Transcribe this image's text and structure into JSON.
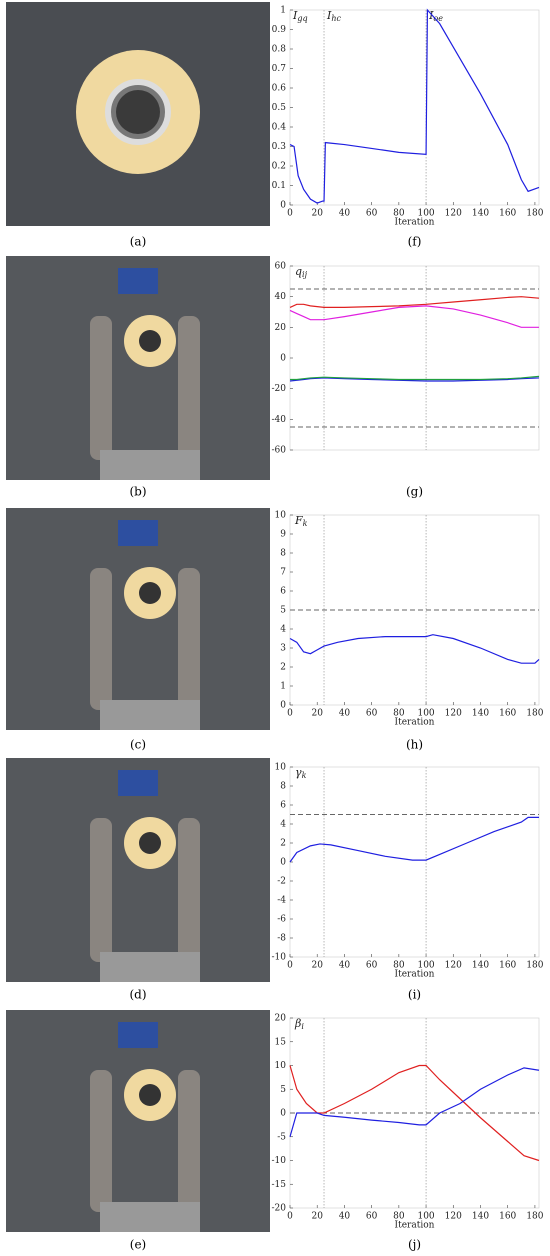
{
  "photos": [
    "(a)",
    "(b)",
    "(c)",
    "(d)",
    "(e)"
  ],
  "chart_data": [
    {
      "type": "line",
      "panel_label": "(f)",
      "xlabel": "Iteration",
      "annotations": [
        {
          "base": "I",
          "sub": "gq"
        },
        {
          "base": "I",
          "sub": "hc"
        },
        {
          "base": "I",
          "sub": "oe"
        }
      ],
      "x": [
        0,
        3,
        6,
        10,
        15,
        20,
        24,
        25,
        26,
        40,
        60,
        80,
        100,
        101,
        110,
        120,
        130,
        140,
        150,
        160,
        170,
        175,
        183
      ],
      "series": [
        {
          "color": "#1f1fe0",
          "values": [
            0.31,
            0.3,
            0.15,
            0.08,
            0.03,
            0.01,
            0.02,
            0.02,
            0.32,
            0.31,
            0.29,
            0.27,
            0.26,
            1.0,
            0.93,
            0.81,
            0.69,
            0.57,
            0.44,
            0.31,
            0.13,
            0.07,
            0.09
          ]
        }
      ],
      "xlim": [
        0,
        183
      ],
      "ylim": [
        0,
        1
      ],
      "xticks": [
        0,
        20,
        40,
        60,
        80,
        100,
        120,
        140,
        160,
        180
      ],
      "yticks": [
        0,
        0.1,
        0.2,
        0.3,
        0.4,
        0.5,
        0.6,
        0.7,
        0.8,
        0.9,
        1
      ],
      "vlines": [
        25,
        100
      ],
      "hlines": []
    },
    {
      "type": "line",
      "panel_label": "(g)",
      "ylabel": {
        "base": "q",
        "sub": "ij"
      },
      "x": [
        0,
        5,
        10,
        15,
        25,
        40,
        60,
        80,
        100,
        120,
        140,
        160,
        170,
        183
      ],
      "series": [
        {
          "color": "#e02020",
          "values": [
            33,
            35,
            35,
            34,
            33,
            33,
            33.5,
            34,
            35,
            36.5,
            38,
            39.5,
            40,
            39
          ]
        },
        {
          "color": "#e020e0",
          "values": [
            31,
            29,
            27,
            25,
            25,
            27,
            30,
            33,
            34,
            32,
            28,
            23,
            20,
            20
          ]
        },
        {
          "color": "#1f1fe0",
          "values": [
            -15,
            -14.5,
            -14,
            -13.5,
            -13,
            -13.5,
            -14,
            -14.5,
            -15,
            -15,
            -14.5,
            -14,
            -13.5,
            -13
          ]
        },
        {
          "color": "#20a040",
          "values": [
            -14,
            -14,
            -13.5,
            -13,
            -12.5,
            -13,
            -13.5,
            -14,
            -14,
            -14,
            -14,
            -13.5,
            -13,
            -12
          ]
        }
      ],
      "xlim": [
        0,
        183
      ],
      "ylim": [
        -60,
        60
      ],
      "yticks": [
        -60,
        -40,
        -20,
        0,
        20,
        40,
        60
      ],
      "vlines": [
        25,
        100
      ],
      "hlines": [
        45,
        -45
      ]
    },
    {
      "type": "line",
      "panel_label": "(h)",
      "xlabel": "Iteration",
      "ylabel": {
        "base": "F",
        "sub": "k"
      },
      "x": [
        0,
        5,
        10,
        15,
        20,
        25,
        35,
        50,
        70,
        100,
        105,
        120,
        140,
        160,
        170,
        180,
        183
      ],
      "series": [
        {
          "color": "#1f1fe0",
          "values": [
            3.5,
            3.3,
            2.8,
            2.7,
            2.9,
            3.1,
            3.3,
            3.5,
            3.6,
            3.6,
            3.7,
            3.5,
            3.0,
            2.4,
            2.2,
            2.2,
            2.4
          ]
        }
      ],
      "xlim": [
        0,
        183
      ],
      "ylim": [
        0,
        10
      ],
      "xticks": [
        0,
        20,
        40,
        60,
        80,
        100,
        120,
        140,
        160,
        180
      ],
      "yticks": [
        0,
        1,
        2,
        3,
        4,
        5,
        6,
        7,
        8,
        9,
        10
      ],
      "vlines": [
        25,
        100
      ],
      "hlines": [
        5
      ]
    },
    {
      "type": "line",
      "panel_label": "(i)",
      "xlabel": "Iteration",
      "ylabel": {
        "base": "γ",
        "sub": "k"
      },
      "x": [
        0,
        5,
        15,
        22,
        30,
        50,
        70,
        90,
        100,
        110,
        130,
        150,
        170,
        175,
        183
      ],
      "series": [
        {
          "color": "#1f1fe0",
          "values": [
            0,
            1,
            1.7,
            1.9,
            1.8,
            1.2,
            0.6,
            0.2,
            0.2,
            0.8,
            2,
            3.2,
            4.2,
            4.7,
            4.7
          ]
        }
      ],
      "xlim": [
        0,
        183
      ],
      "ylim": [
        -10,
        10
      ],
      "xticks": [
        0,
        20,
        40,
        60,
        80,
        100,
        120,
        140,
        160,
        180
      ],
      "yticks": [
        -10,
        -8,
        -6,
        -4,
        -2,
        0,
        2,
        4,
        6,
        8,
        10
      ],
      "vlines": [
        25,
        100
      ],
      "hlines": [
        5
      ]
    },
    {
      "type": "line",
      "panel_label": "(j)",
      "xlabel": "Iteration",
      "ylabel": {
        "base": "β",
        "sub": "i"
      },
      "x": [
        0,
        5,
        12,
        20,
        25,
        40,
        60,
        80,
        95,
        100,
        110,
        125,
        140,
        160,
        172,
        183
      ],
      "series": [
        {
          "color": "#e02020",
          "values": [
            10,
            5,
            2,
            0,
            0,
            2,
            5,
            8.5,
            10,
            10,
            7,
            3,
            -1,
            -6,
            -9,
            -10
          ]
        },
        {
          "color": "#1f1fe0",
          "values": [
            -5,
            0,
            0,
            0,
            -0.5,
            -0.9,
            -1.5,
            -2,
            -2.5,
            -2.5,
            0,
            2,
            5,
            8,
            9.5,
            9
          ]
        }
      ],
      "xlim": [
        0,
        183
      ],
      "ylim": [
        -20,
        20
      ],
      "xticks": [
        0,
        20,
        40,
        60,
        80,
        100,
        120,
        140,
        160,
        180
      ],
      "yticks": [
        -20,
        -15,
        -10,
        -5,
        0,
        5,
        10,
        15,
        20
      ],
      "vlines": [
        25,
        100
      ],
      "hlines": [
        0
      ]
    }
  ]
}
